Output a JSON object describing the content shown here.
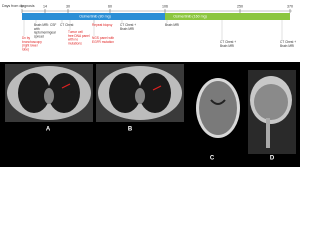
{
  "timeline": {
    "axis_label": "Days from diagnosis",
    "ticks": [
      0,
      14,
      30,
      60,
      106,
      250,
      370
    ],
    "bars": [
      {
        "label": "Osimertinib (80 mg)"
      },
      {
        "label": "Osimertinib (160 mg)"
      }
    ],
    "events": [
      {
        "text": "Brain MRI: CSF with leptomeningeal spread"
      },
      {
        "text": "Dx by bronchoscopy (right lower lobe)"
      },
      {
        "text": "CT Chest"
      },
      {
        "text": "Tumor cell free DNA panel with no mutations"
      },
      {
        "text": "Repeat biopsy"
      },
      {
        "text": "NGS panel with EGFR mutation"
      },
      {
        "text": "CT Chest + Brain MRI"
      },
      {
        "text": "Brain MRI"
      },
      {
        "text": "CT Chest + Brain MRI"
      },
      {
        "text": "CT Chest + Brain MRI"
      }
    ]
  },
  "panels": [
    {
      "label": "A"
    },
    {
      "label": "B"
    },
    {
      "label": "C"
    },
    {
      "label": "D"
    }
  ]
}
